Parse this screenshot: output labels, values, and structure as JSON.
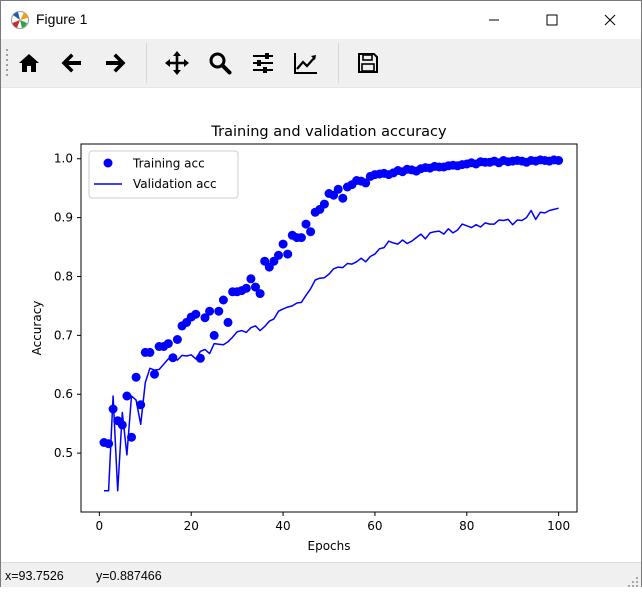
{
  "window": {
    "title": "Figure 1",
    "icon": "matplotlib-icon"
  },
  "toolbar": {
    "buttons": [
      {
        "name": "home",
        "icon": "home-icon"
      },
      {
        "name": "back",
        "icon": "arrow-left-icon"
      },
      {
        "name": "forward",
        "icon": "arrow-right-icon"
      },
      {
        "name": "pan",
        "icon": "move-icon"
      },
      {
        "name": "zoom",
        "icon": "magnifier-icon"
      },
      {
        "name": "subplots",
        "icon": "sliders-icon"
      },
      {
        "name": "customize",
        "icon": "chart-line-icon"
      },
      {
        "name": "save",
        "icon": "floppy-disk-icon"
      }
    ]
  },
  "status": {
    "x": "x=93.7526",
    "y": "y=0.887466"
  },
  "chart_data": {
    "type": "line",
    "title": "Training and validation accuracy",
    "xlabel": "Epochs",
    "ylabel": "Accuracy",
    "xlim": [
      -4,
      104
    ],
    "ylim": [
      0.4,
      1.025
    ],
    "xticks": [
      0,
      20,
      40,
      60,
      80,
      100
    ],
    "xtick_labels": [
      "0",
      "20",
      "40",
      "60",
      "80",
      "100"
    ],
    "yticks": [
      0.5,
      0.6,
      0.7,
      0.8,
      0.9,
      1.0
    ],
    "ytick_labels": [
      "0.5",
      "0.6",
      "0.7",
      "0.8",
      "0.9",
      "1.0"
    ],
    "grid": false,
    "legend_position": "upper-left",
    "x": [
      1,
      2,
      3,
      4,
      5,
      6,
      7,
      8,
      9,
      10,
      11,
      12,
      13,
      14,
      15,
      16,
      17,
      18,
      19,
      20,
      21,
      22,
      23,
      24,
      25,
      26,
      27,
      28,
      29,
      30,
      31,
      32,
      33,
      34,
      35,
      36,
      37,
      38,
      39,
      40,
      41,
      42,
      43,
      44,
      45,
      46,
      47,
      48,
      49,
      50,
      51,
      52,
      53,
      54,
      55,
      56,
      57,
      58,
      59,
      60,
      61,
      62,
      63,
      64,
      65,
      66,
      67,
      68,
      69,
      70,
      71,
      72,
      73,
      74,
      75,
      76,
      77,
      78,
      79,
      80,
      81,
      82,
      83,
      84,
      85,
      86,
      87,
      88,
      89,
      90,
      91,
      92,
      93,
      94,
      95,
      96,
      97,
      98,
      99,
      100
    ],
    "series": [
      {
        "name": "Training acc",
        "style": "points",
        "color": "#0000ff",
        "values": [
          0.518,
          0.516,
          0.575,
          0.555,
          0.548,
          0.597,
          0.527,
          0.629,
          0.582,
          0.671,
          0.671,
          0.634,
          0.681,
          0.681,
          0.686,
          0.662,
          0.693,
          0.716,
          0.722,
          0.731,
          0.736,
          0.661,
          0.73,
          0.741,
          0.7,
          0.741,
          0.76,
          0.722,
          0.774,
          0.774,
          0.776,
          0.78,
          0.796,
          0.782,
          0.771,
          0.826,
          0.816,
          0.826,
          0.836,
          0.855,
          0.838,
          0.87,
          0.866,
          0.866,
          0.889,
          0.876,
          0.909,
          0.914,
          0.923,
          0.941,
          0.938,
          0.948,
          0.933,
          0.952,
          0.956,
          0.963,
          0.962,
          0.959,
          0.97,
          0.973,
          0.974,
          0.975,
          0.973,
          0.976,
          0.98,
          0.978,
          0.982,
          0.981,
          0.979,
          0.983,
          0.985,
          0.984,
          0.987,
          0.986,
          0.986,
          0.988,
          0.989,
          0.988,
          0.99,
          0.991,
          0.993,
          0.991,
          0.995,
          0.994,
          0.994,
          0.996,
          0.993,
          0.997,
          0.995,
          0.996,
          0.997,
          0.996,
          0.994,
          0.997,
          0.996,
          0.998,
          0.997,
          0.996,
          0.998,
          0.997
        ]
      },
      {
        "name": "Validation acc",
        "style": "line",
        "color": "#0000ff",
        "values": [
          0.436,
          0.436,
          0.597,
          0.436,
          0.569,
          0.497,
          0.597,
          0.59,
          0.549,
          0.62,
          0.644,
          0.641,
          0.642,
          0.651,
          0.66,
          0.664,
          0.658,
          0.666,
          0.665,
          0.667,
          0.66,
          0.673,
          0.676,
          0.669,
          0.686,
          0.685,
          0.684,
          0.689,
          0.697,
          0.706,
          0.708,
          0.705,
          0.713,
          0.716,
          0.708,
          0.715,
          0.724,
          0.728,
          0.741,
          0.745,
          0.748,
          0.75,
          0.755,
          0.756,
          0.768,
          0.779,
          0.794,
          0.797,
          0.798,
          0.804,
          0.813,
          0.816,
          0.815,
          0.822,
          0.821,
          0.825,
          0.831,
          0.825,
          0.834,
          0.838,
          0.847,
          0.849,
          0.86,
          0.857,
          0.855,
          0.862,
          0.856,
          0.86,
          0.866,
          0.872,
          0.864,
          0.874,
          0.876,
          0.877,
          0.872,
          0.881,
          0.874,
          0.879,
          0.889,
          0.886,
          0.883,
          0.888,
          0.884,
          0.891,
          0.889,
          0.889,
          0.896,
          0.895,
          0.897,
          0.888,
          0.896,
          0.895,
          0.9,
          0.912,
          0.897,
          0.909,
          0.908,
          0.912,
          0.914,
          0.916
        ]
      }
    ]
  }
}
